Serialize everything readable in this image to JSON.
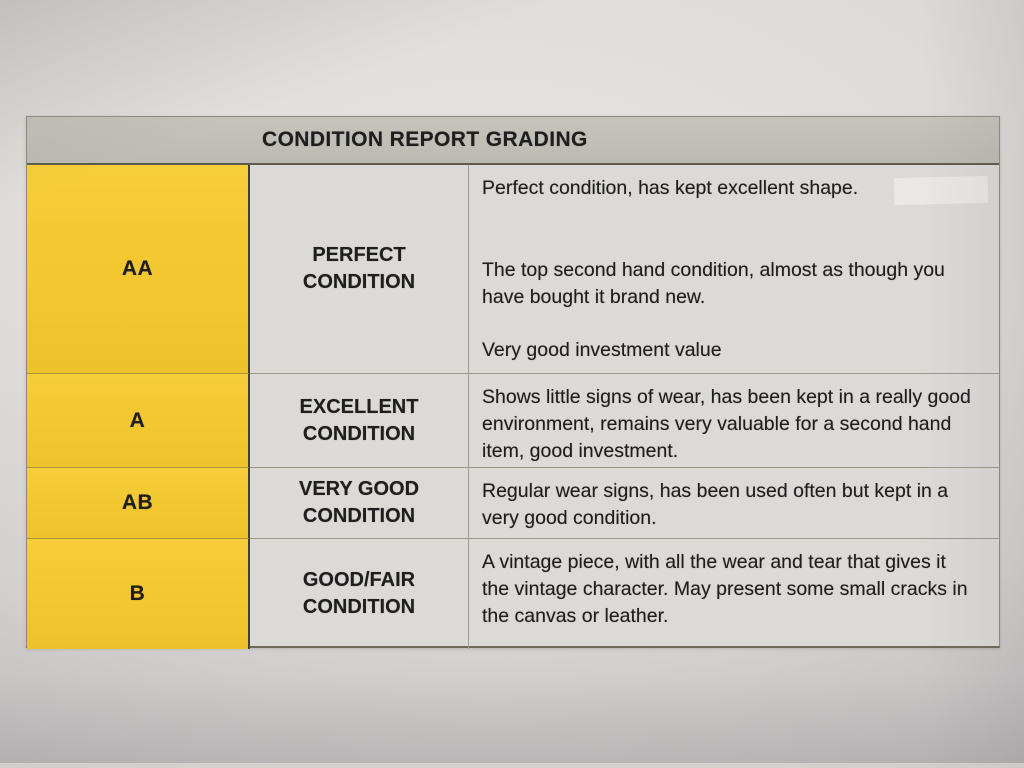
{
  "table": {
    "title": "CONDITION REPORT GRADING",
    "rows": [
      {
        "grade": "AA",
        "condition": "PERFECT CONDITION",
        "descriptions": [
          "Perfect condition, has kept excellent shape.",
          "The top second hand condition, almost as though you have bought it brand new.",
          "Very good investment value"
        ]
      },
      {
        "grade": "A",
        "condition": "EXCELLENT CONDITION",
        "descriptions": [
          "Shows little signs of wear, has been kept in a really good environment, remains very valuable for a second hand item, good investment."
        ]
      },
      {
        "grade": "AB",
        "condition": "VERY GOOD CONDITION",
        "descriptions": [
          "Regular wear signs, has been used often but kept in a very good condition."
        ]
      },
      {
        "grade": "B",
        "condition": "GOOD/FAIR CONDITION",
        "descriptions": [
          "A vintage piece, with all the wear and tear that gives it the vintage character. May present some small cracks in the canvas or leather."
        ]
      }
    ],
    "colors": {
      "grade_column_yellow": "#f2c72f",
      "header_gray": "#c1beb7",
      "paper": "#dcdad7",
      "text": "#1e1e1e"
    }
  }
}
